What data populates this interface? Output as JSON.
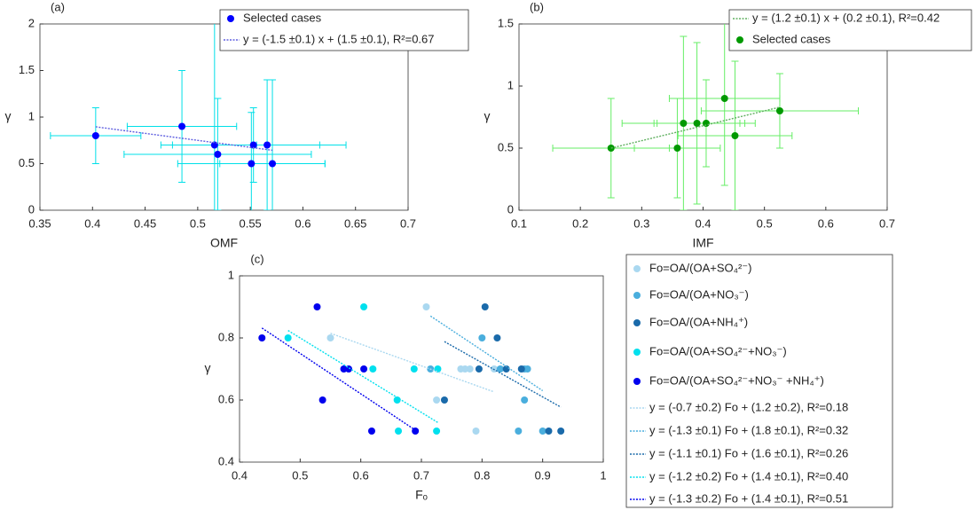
{
  "chart_data": [
    {
      "type": "scatter",
      "label": "(a)",
      "xlabel": "OMF",
      "ylabel": "γ",
      "xlim": [
        0.35,
        0.7
      ],
      "xticks": [
        0.35,
        0.4,
        0.45,
        0.5,
        0.55,
        0.6,
        0.65,
        0.7
      ],
      "ylim": [
        0,
        2
      ],
      "yticks": [
        0,
        0.5,
        1,
        1.5,
        2
      ],
      "series": [
        {
          "name": "Selected cases",
          "color": "#0000ff",
          "error_color": "#00e0e8",
          "x": [
            0.403,
            0.485,
            0.516,
            0.519,
            0.553,
            0.566,
            0.551,
            0.571
          ],
          "y": [
            0.8,
            0.9,
            0.7,
            0.6,
            0.7,
            0.7,
            0.5,
            0.5
          ],
          "xerr": [
            0.043,
            0.052,
            0.04,
            0.089,
            0.088,
            0.05,
            0.07,
            0.05
          ],
          "yerr": [
            0.3,
            0.6,
            1.4,
            0.6,
            0.4,
            0.7,
            0.55,
            0.9
          ]
        }
      ],
      "fits": [
        {
          "name": "y = (-1.5 ±0.1) x + (1.5 ±0.1), R²=0.67",
          "slope": -1.5,
          "intercept": 1.5,
          "color": "#6060e0"
        }
      ]
    },
    {
      "type": "scatter",
      "label": "(b)",
      "xlabel": "IMF",
      "ylabel": "γ",
      "xlim": [
        0.1,
        0.7
      ],
      "xticks": [
        0.1,
        0.2,
        0.3,
        0.4,
        0.5,
        0.6,
        0.7
      ],
      "ylim": [
        0,
        1.5
      ],
      "yticks": [
        0,
        0.5,
        1,
        1.5
      ],
      "series": [
        {
          "name": "Selected cases",
          "color": "#009900",
          "error_color": "#66ee66",
          "x": [
            0.25,
            0.358,
            0.368,
            0.39,
            0.405,
            0.435,
            0.452,
            0.525
          ],
          "y": [
            0.5,
            0.5,
            0.7,
            0.7,
            0.7,
            0.9,
            0.6,
            0.8
          ],
          "xerr": [
            0.095,
            0.07,
            0.1,
            0.07,
            0.08,
            0.09,
            0.093,
            0.128
          ],
          "yerr": [
            0.4,
            0.4,
            0.7,
            0.65,
            0.35,
            0.7,
            0.6,
            0.3
          ]
        }
      ],
      "fits": [
        {
          "name": "y = (1.2 ±0.1) x + (0.2 ±0.1), R²=0.42",
          "slope": 1.2,
          "intercept": 0.2,
          "color": "#60b060"
        }
      ]
    },
    {
      "type": "scatter",
      "label": "(c)",
      "xlabel": "Fₒ",
      "ylabel": "γ",
      "xlim": [
        0.4,
        1
      ],
      "xticks": [
        0.4,
        0.5,
        0.6,
        0.7,
        0.8,
        0.9,
        1
      ],
      "ylim": [
        0.4,
        1
      ],
      "yticks": [
        0.4,
        0.6,
        0.8,
        1
      ],
      "series": [
        {
          "name": "Fo=OA/(OA+SO₄²⁻)",
          "color": "#aad8f0",
          "x": [
            0.55,
            0.708,
            0.725,
            0.765,
            0.772,
            0.78,
            0.79,
            0.82
          ],
          "y": [
            0.8,
            0.9,
            0.6,
            0.7,
            0.7,
            0.7,
            0.5,
            0.7
          ]
        },
        {
          "name": "Fo=OA/(OA+NO₃⁻)",
          "color": "#4aaedd",
          "x": [
            0.715,
            0.8,
            0.83,
            0.87,
            0.875,
            0.87,
            0.9,
            0.86
          ],
          "y": [
            0.7,
            0.8,
            0.7,
            0.7,
            0.7,
            0.6,
            0.5,
            0.5
          ]
        },
        {
          "name": "Fo=OA/(OA+NH₄⁺)",
          "color": "#1a6aaa",
          "x": [
            0.805,
            0.738,
            0.825,
            0.795,
            0.84,
            0.865,
            0.91,
            0.93
          ],
          "y": [
            0.9,
            0.6,
            0.8,
            0.7,
            0.7,
            0.7,
            0.5,
            0.5
          ]
        },
        {
          "name": "Fo=OA/(OA+SO₄²⁻+NO₃⁻)",
          "color": "#00e0ee",
          "x": [
            0.48,
            0.605,
            0.62,
            0.66,
            0.662,
            0.688,
            0.725,
            0.727
          ],
          "y": [
            0.8,
            0.9,
            0.7,
            0.6,
            0.5,
            0.7,
            0.5,
            0.7
          ]
        },
        {
          "name": "Fo=OA/(OA+SO₄²⁻+NO₃⁻ +NH₄⁺)",
          "color": "#0000ee",
          "x": [
            0.437,
            0.528,
            0.537,
            0.572,
            0.58,
            0.605,
            0.618,
            0.69
          ],
          "y": [
            0.8,
            0.9,
            0.6,
            0.7,
            0.7,
            0.7,
            0.5,
            0.5
          ]
        }
      ],
      "fits": [
        {
          "name": "y = (-0.7 ±0.2) Fo + (1.2 ±0.2), R²=0.18",
          "slope": -0.7,
          "intercept": 1.2,
          "color": "#aad8f0"
        },
        {
          "name": "y = (-1.3 ±0.1) Fo + (1.8 ±0.1), R²=0.32",
          "slope": -1.3,
          "intercept": 1.8,
          "color": "#4aaedd"
        },
        {
          "name": "y = (-1.1 ±0.1) Fo + (1.6 ±0.1), R²=0.26",
          "slope": -1.1,
          "intercept": 1.6,
          "color": "#1a6aaa"
        },
        {
          "name": "y = (-1.2 ±0.2) Fo + (1.4 ±0.1), R²=0.40",
          "slope": -1.2,
          "intercept": 1.4,
          "color": "#00e0ee"
        },
        {
          "name": "y = (-1.3 ±0.2) Fo + (1.4 ±0.1), R²=0.51",
          "slope": -1.3,
          "intercept": 1.4,
          "color": "#0000ee"
        }
      ]
    }
  ]
}
